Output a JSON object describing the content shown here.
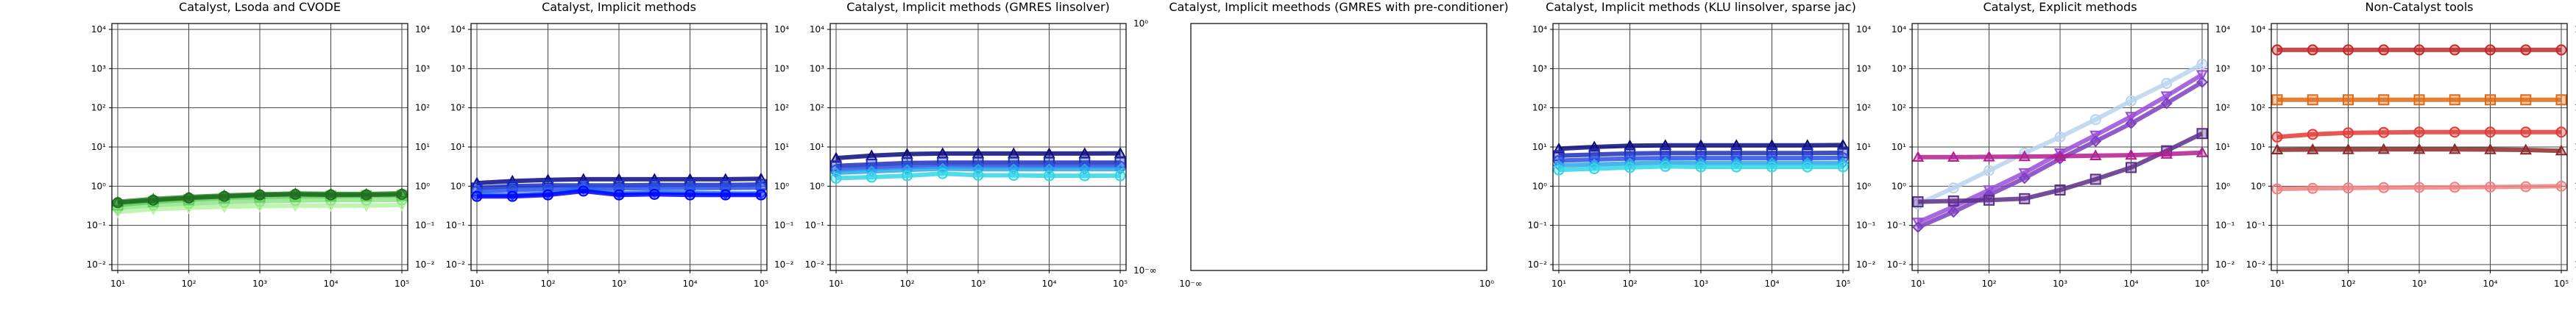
{
  "chart_data": [
    {
      "type": "line",
      "title": "Catalyst, Lsoda and CVODE",
      "xscale": "log",
      "yscale": "log",
      "xlim_exp": [
        1,
        5
      ],
      "ylim_exp": [
        -2,
        4
      ],
      "x": [
        10,
        31.6,
        100,
        316,
        1000,
        3162,
        10000,
        31623,
        100000
      ],
      "xticks": [
        "10¹",
        "10²",
        "10³",
        "10⁴",
        "10⁵"
      ],
      "yticks": [
        "10⁻²",
        "10⁻¹",
        "10⁰",
        "10¹",
        "10²",
        "10³",
        "10⁴"
      ],
      "right_yticks": [
        "10⁻²",
        "10⁻¹",
        "10⁰",
        "10¹",
        "10²",
        "10³",
        "10⁴"
      ],
      "grid": true,
      "series": [
        {
          "color": "#b6f2a0",
          "marker": "v",
          "values": [
            0.22,
            0.26,
            0.28,
            0.3,
            0.31,
            0.32,
            0.32,
            0.32,
            0.33
          ]
        },
        {
          "color": "#8fe48a",
          "marker": "o",
          "values": [
            0.28,
            0.33,
            0.36,
            0.39,
            0.41,
            0.43,
            0.44,
            0.44,
            0.45
          ]
        },
        {
          "color": "#5fcf5a",
          "marker": "s",
          "values": [
            0.33,
            0.4,
            0.45,
            0.5,
            0.53,
            0.55,
            0.56,
            0.57,
            0.58
          ]
        },
        {
          "color": "#2e8b2e",
          "marker": "^",
          "values": [
            0.4,
            0.47,
            0.53,
            0.58,
            0.62,
            0.65,
            0.64,
            0.63,
            0.66
          ]
        },
        {
          "color": "#1f6e1f",
          "marker": "o",
          "values": [
            0.38,
            0.44,
            0.5,
            0.55,
            0.6,
            0.62,
            0.6,
            0.6,
            0.62
          ]
        }
      ]
    },
    {
      "type": "line",
      "title": "Catalyst, Implicit methods",
      "xscale": "log",
      "yscale": "log",
      "xlim_exp": [
        1,
        5
      ],
      "ylim_exp": [
        -2,
        4
      ],
      "x": [
        10,
        31.6,
        100,
        316,
        1000,
        3162,
        10000,
        31623,
        100000
      ],
      "xticks": [
        "10¹",
        "10²",
        "10³",
        "10⁴",
        "10⁵"
      ],
      "yticks": [
        "10⁻²",
        "10⁻¹",
        "10⁰",
        "10¹",
        "10²",
        "10³",
        "10⁴"
      ],
      "right_yticks": [
        "10⁻²",
        "10⁻¹",
        "10⁰",
        "10¹",
        "10²",
        "10³",
        "10⁴"
      ],
      "grid": true,
      "series": [
        {
          "color": "#0a0a8a",
          "marker": "^",
          "values": [
            1.2,
            1.35,
            1.45,
            1.5,
            1.5,
            1.5,
            1.5,
            1.5,
            1.55
          ]
        },
        {
          "color": "#1a2fc8",
          "marker": "s",
          "values": [
            0.9,
            1.0,
            1.05,
            1.05,
            1.05,
            1.08,
            1.08,
            1.08,
            1.1
          ]
        },
        {
          "color": "#2850e8",
          "marker": "o",
          "values": [
            0.75,
            0.8,
            0.85,
            0.9,
            0.88,
            0.9,
            0.9,
            0.9,
            0.92
          ]
        },
        {
          "color": "#1e6ef0",
          "marker": "D",
          "values": [
            0.6,
            0.6,
            0.65,
            0.85,
            0.65,
            0.7,
            0.68,
            0.65,
            0.65
          ]
        },
        {
          "color": "#0000ff",
          "marker": "o",
          "values": [
            0.55,
            0.55,
            0.6,
            0.75,
            0.6,
            0.62,
            0.6,
            0.6,
            0.6
          ]
        }
      ]
    },
    {
      "type": "line",
      "title": "Catalyst, Implicit methods (GMRES linsolver)",
      "xscale": "log",
      "yscale": "log",
      "xlim_exp": [
        1,
        5
      ],
      "ylim_exp": [
        -2,
        4
      ],
      "x": [
        10,
        31.6,
        100,
        316,
        1000,
        3162,
        10000,
        31623,
        100000
      ],
      "xticks": [
        "10¹",
        "10²",
        "10³",
        "10⁴",
        "10⁵"
      ],
      "yticks": [
        "10⁻²",
        "10⁻¹",
        "10⁰",
        "10¹",
        "10²",
        "10³",
        "10⁴"
      ],
      "right_yticks": [
        "10⁰",
        "10⁻∞"
      ],
      "grid": true,
      "series": [
        {
          "color": "#0a0a7a",
          "marker": "^",
          "values": [
            5.2,
            6.0,
            6.6,
            6.8,
            6.8,
            6.8,
            6.8,
            6.8,
            6.9
          ]
        },
        {
          "color": "#1f2fb8",
          "marker": "s",
          "values": [
            3.3,
            3.6,
            3.9,
            4.0,
            4.0,
            4.0,
            4.0,
            4.0,
            4.0
          ]
        },
        {
          "color": "#2d4fe6",
          "marker": "o",
          "values": [
            2.6,
            2.9,
            3.1,
            3.2,
            3.2,
            3.2,
            3.2,
            3.2,
            3.2
          ]
        },
        {
          "color": "#2aa7e8",
          "marker": "D",
          "values": [
            2.2,
            2.4,
            2.6,
            2.8,
            2.7,
            2.7,
            2.7,
            2.7,
            2.7
          ]
        },
        {
          "color": "#33d6e8",
          "marker": "o",
          "values": [
            1.6,
            1.7,
            1.85,
            2.1,
            1.9,
            1.9,
            1.85,
            1.85,
            1.85
          ]
        }
      ]
    },
    {
      "type": "line",
      "title": "Catalyst, Implicit meethods (GMRES with pre-conditioner)",
      "xscale": "log",
      "yscale": "log",
      "xticks": [
        "10⁻∞",
        "10⁰"
      ],
      "yticks": [],
      "right_yticks": [],
      "grid": false,
      "series": []
    },
    {
      "type": "line",
      "title": "Catalyst, Implicit methods (KLU linsolver, sparse jac)",
      "xscale": "log",
      "yscale": "log",
      "xlim_exp": [
        1,
        5
      ],
      "ylim_exp": [
        -2,
        4
      ],
      "x": [
        10,
        31.6,
        100,
        316,
        1000,
        3162,
        10000,
        31623,
        100000
      ],
      "xticks": [
        "10¹",
        "10²",
        "10³",
        "10⁴",
        "10⁵"
      ],
      "yticks": [
        "10⁻²",
        "10⁻¹",
        "10⁰",
        "10¹",
        "10²",
        "10³",
        "10⁴"
      ],
      "right_yticks": [
        "10⁻²",
        "10⁻¹",
        "10⁰",
        "10¹",
        "10²",
        "10³",
        "10⁴"
      ],
      "grid": true,
      "series": [
        {
          "color": "#0a0a7a",
          "marker": "^",
          "values": [
            9.0,
            10.0,
            10.8,
            11.0,
            11.0,
            11.0,
            11.0,
            11.0,
            11.2
          ]
        },
        {
          "color": "#1f2fb8",
          "marker": "s",
          "values": [
            6.0,
            6.4,
            6.8,
            7.0,
            7.0,
            7.0,
            7.0,
            7.0,
            7.1
          ]
        },
        {
          "color": "#2d4fe6",
          "marker": "o",
          "values": [
            4.5,
            4.8,
            5.1,
            5.2,
            5.2,
            5.2,
            5.2,
            5.2,
            5.3
          ]
        },
        {
          "color": "#2aa7e8",
          "marker": "D",
          "values": [
            3.4,
            3.6,
            3.8,
            4.0,
            3.9,
            3.9,
            3.9,
            3.9,
            3.9
          ]
        },
        {
          "color": "#33d6e8",
          "marker": "o",
          "values": [
            2.6,
            2.8,
            3.0,
            3.2,
            3.1,
            3.1,
            3.1,
            3.1,
            3.1
          ]
        }
      ]
    },
    {
      "type": "line",
      "title": "Catalyst, Explicit methods",
      "xscale": "log",
      "yscale": "log",
      "xlim_exp": [
        1,
        5
      ],
      "ylim_exp": [
        -2,
        4
      ],
      "x": [
        10,
        31.6,
        100,
        316,
        1000,
        3162,
        10000,
        31623,
        100000
      ],
      "xticks": [
        "10¹",
        "10²",
        "10³",
        "10⁴",
        "10⁵"
      ],
      "yticks": [
        "10⁻²",
        "10⁻¹",
        "10⁰",
        "10¹",
        "10²",
        "10³",
        "10⁴"
      ],
      "right_yticks": [
        "10⁻²",
        "10⁻¹",
        "10⁰",
        "10¹",
        "10²",
        "10³",
        "10⁴"
      ],
      "grid": true,
      "series": [
        {
          "color": "#b9d4ee",
          "marker": "o",
          "values": [
            0.35,
            0.9,
            2.5,
            7,
            18,
            50,
            150,
            420,
            1300
          ]
        },
        {
          "color": "#9a4dd8",
          "marker": "v",
          "values": [
            0.12,
            0.3,
            0.8,
            2.2,
            7,
            20,
            60,
            200,
            700
          ]
        },
        {
          "color": "#7b3fc0",
          "marker": "D",
          "values": [
            0.09,
            0.22,
            0.6,
            1.6,
            5,
            14,
            40,
            130,
            450
          ]
        },
        {
          "color": "#5c2f8a",
          "marker": "s",
          "values": [
            0.4,
            0.42,
            0.44,
            0.48,
            0.8,
            1.5,
            3,
            8,
            22
          ]
        },
        {
          "color": "#b21f8f",
          "marker": "^",
          "values": [
            5.5,
            5.5,
            5.6,
            5.7,
            5.8,
            6.0,
            6.2,
            6.6,
            7.2
          ]
        }
      ]
    },
    {
      "type": "line",
      "title": "Non-Catalyst tools",
      "xscale": "log",
      "yscale": "log",
      "xlim_exp": [
        1,
        5
      ],
      "ylim_exp": [
        -2,
        4
      ],
      "x": [
        10,
        31.6,
        100,
        316,
        1000,
        3162,
        10000,
        31623,
        100000
      ],
      "xticks": [
        "10¹",
        "10²",
        "10³",
        "10⁴",
        "10⁵"
      ],
      "yticks": [
        "10⁻²",
        "10⁻¹",
        "10⁰",
        "10¹",
        "10²",
        "10³",
        "10⁴"
      ],
      "right_yticks": [
        "10⁻²",
        "10⁻¹",
        "10⁰",
        "10¹",
        "10²",
        "10³",
        "10⁴"
      ],
      "grid": true,
      "series": [
        {
          "color": "#c62828",
          "marker": "o",
          "values": [
            3000,
            3000,
            3000,
            3000,
            3000,
            3000,
            3000,
            3000,
            3000
          ]
        },
        {
          "color": "#e06b14",
          "marker": "s",
          "values": [
            160,
            160,
            160,
            160,
            160,
            160,
            160,
            160,
            160
          ]
        },
        {
          "color": "#e53935",
          "marker": "o",
          "values": [
            18,
            21,
            23,
            23.5,
            24,
            24,
            24,
            24,
            24
          ]
        },
        {
          "color": "#8b2a2a",
          "marker": "^",
          "values": [
            8.5,
            8.6,
            8.6,
            8.7,
            8.7,
            8.7,
            8.6,
            8.4,
            8.0
          ]
        },
        {
          "color": "#f08080",
          "marker": "o",
          "values": [
            0.85,
            0.88,
            0.9,
            0.92,
            0.93,
            0.94,
            0.95,
            0.97,
            1.0
          ]
        }
      ]
    }
  ]
}
